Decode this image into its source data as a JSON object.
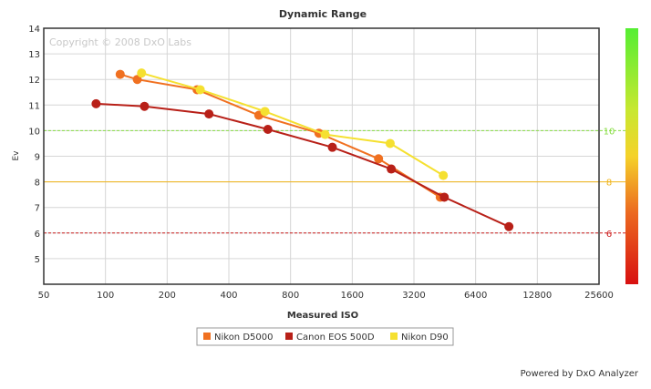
{
  "chart_data": {
    "type": "line",
    "title": "Dynamic Range",
    "xlabel": "Measured ISO",
    "ylabel": "Ev",
    "x_scale": "log2",
    "xlim": [
      50,
      25600
    ],
    "ylim": [
      4,
      14
    ],
    "x_ticks": [
      50,
      100,
      200,
      400,
      800,
      1600,
      3200,
      6400,
      12800,
      25600
    ],
    "x_tick_labels": [
      "50",
      "100",
      "200",
      "400",
      "800",
      "1600",
      "3200",
      "6400",
      "12800",
      "25600"
    ],
    "y_ticks": [
      5,
      6,
      7,
      8,
      9,
      10,
      11,
      12,
      13,
      14
    ],
    "y_tick_labels": [
      "5",
      "6",
      "7",
      "8",
      "9",
      "10",
      "11",
      "12",
      "13",
      "14"
    ],
    "grid": true,
    "watermark": "Copyright © 2008 DxO Labs",
    "series": [
      {
        "name": "Nikon D5000",
        "color": "#f07020",
        "points": [
          [
            118,
            12.2
          ],
          [
            143,
            12.0
          ],
          [
            280,
            11.6
          ],
          [
            560,
            10.6
          ],
          [
            1100,
            9.9
          ],
          [
            2150,
            8.9
          ],
          [
            4300,
            7.4
          ]
        ]
      },
      {
        "name": "Canon EOS 500D",
        "color": "#b82018",
        "points": [
          [
            90,
            11.05
          ],
          [
            155,
            10.95
          ],
          [
            320,
            10.65
          ],
          [
            620,
            10.05
          ],
          [
            1280,
            9.35
          ],
          [
            2480,
            8.5
          ],
          [
            4500,
            7.4
          ],
          [
            9300,
            6.25
          ]
        ]
      },
      {
        "name": "Nikon D90",
        "color": "#f5e030",
        "points": [
          [
            150,
            12.25
          ],
          [
            290,
            11.6
          ],
          [
            600,
            10.75
          ],
          [
            1180,
            9.85
          ],
          [
            2450,
            9.5
          ],
          [
            4450,
            8.25
          ]
        ]
      }
    ],
    "reference_lines": [
      {
        "value": 10,
        "label": "10",
        "color": "#88dd44"
      },
      {
        "value": 8,
        "label": "8",
        "color": "#f0b418"
      },
      {
        "value": 6,
        "label": "6",
        "color": "#cc1c1c"
      }
    ],
    "legend_position": "bottom-center",
    "color_scale": {
      "top": "#55ee33",
      "middle": "#f0b418",
      "bottom": "#d81010"
    }
  },
  "footer": {
    "powered_by": "Powered by DxO Analyzer"
  }
}
